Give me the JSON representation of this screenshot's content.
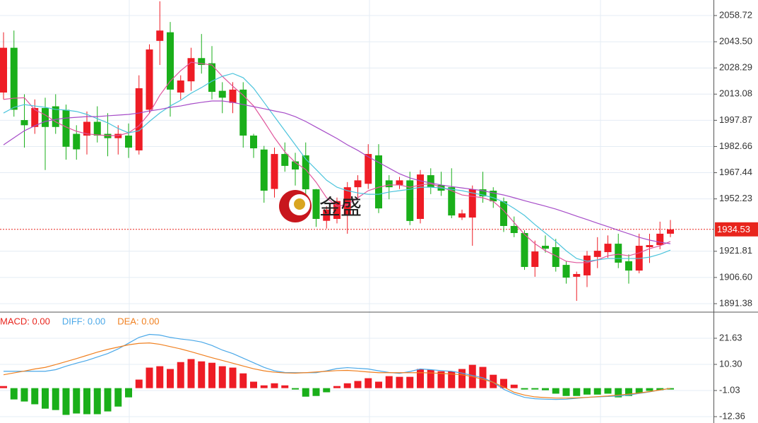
{
  "chart_data": [
    {
      "type": "candlestick",
      "open": [
        2014,
        2040,
        1998,
        1994,
        2005,
        2006,
        2004,
        1990,
        1989,
        1997,
        1990,
        1987.5,
        1989,
        1980.4,
        2004,
        2044,
        2049,
        2014,
        2020.5,
        2034,
        2031,
        2015,
        2008,
        2015.7,
        1989,
        1980.9,
        1958,
        1978.3,
        1974,
        1977.5,
        1957.8,
        1939.5,
        1940.6,
        1942.6,
        1959,
        1961,
        1977.5,
        1963,
        1960.3,
        1963,
        1940.6,
        1966,
        1960.3,
        1959,
        1941.4,
        1941.4,
        1957.8,
        1957,
        1950.8,
        1936.5,
        1932.4,
        1912.7,
        1925,
        1924.2,
        1913.9,
        1907,
        1907.8,
        1918.5,
        1921.3,
        1926.2,
        1916,
        1910.6,
        1924.2,
        1925.4,
        1932
      ],
      "high": [
        2049,
        2050,
        2013,
        2010,
        2011,
        2013,
        2007,
        1995,
        2003,
        2006,
        2002,
        1995,
        1996,
        2024,
        2042,
        2067,
        2055,
        2024,
        2040,
        2048,
        2041,
        2020,
        2020,
        2020,
        1990,
        1983,
        1982,
        1985,
        1979,
        1985,
        1958,
        1948,
        1953,
        1962,
        1966,
        1984,
        1984,
        1966,
        1965,
        1968,
        1969,
        1970,
        1968,
        1970,
        1946,
        1960,
        1968,
        1959,
        1953,
        1942,
        1934,
        1928,
        1931,
        1929,
        1916,
        1910,
        1922,
        1930,
        1931,
        1932,
        1920,
        1932,
        1932,
        1939,
        1940
      ],
      "low": [
        2010,
        2000,
        1982,
        1990,
        1969,
        1990,
        1975,
        1975,
        1978,
        1985,
        1977,
        1978,
        1976,
        1978,
        2002,
        2030,
        2000,
        2010,
        2015,
        2025,
        2010,
        2002,
        2002,
        1982,
        1976,
        1950,
        1953,
        1968,
        1960,
        1954,
        1936,
        1935,
        1938,
        1932,
        1952,
        1958,
        1944,
        1952,
        1958,
        1937,
        1938,
        1955,
        1954,
        1941,
        1940,
        1925,
        1950,
        1947,
        1933,
        1930,
        1911,
        1907,
        1921,
        1910,
        1903,
        1893,
        1901,
        1912,
        1918,
        1912,
        1903,
        1909,
        1915,
        1923,
        1930
      ],
      "close": [
        2040,
        2004,
        1995,
        2005,
        1994,
        1994,
        1982.5,
        1981,
        1997,
        1989,
        1987.5,
        1990,
        1982,
        2016.5,
        2039,
        2050,
        2015.7,
        2021,
        2034,
        2030,
        2014.4,
        2011,
        2015.7,
        1989,
        1981.6,
        1957,
        1978.3,
        1971.4,
        1969.3,
        1957.8,
        1940.6,
        1946,
        1951,
        1959,
        1963,
        1978.3,
        1946.7,
        1959,
        1963,
        1939.4,
        1966.4,
        1959,
        1957,
        1942.6,
        1943.8,
        1957.8,
        1953.7,
        1950.8,
        1936.5,
        1932.4,
        1912.7,
        1921.7,
        1923.3,
        1912.7,
        1906.5,
        1908.6,
        1919.3,
        1922.1,
        1926.2,
        1915.2,
        1910.6,
        1925,
        1925.4,
        1932,
        1934.5
      ],
      "up_color": "#ee1c25",
      "down_color": "#1aaf1a",
      "series": [
        {
          "color": "#e0559b",
          "values": [
            2010,
            2010.7,
            2011,
            2004,
            2001,
            1997,
            1994,
            1991.5,
            1990,
            1989.4,
            1989,
            1989,
            1990.6,
            1994.7,
            2002,
            2012.4,
            2020.6,
            2026.7,
            2031.6,
            2030.8,
            2030,
            2023.4,
            2017.7,
            2012.4,
            2006.2,
            1997.2,
            1987.8,
            1979.5,
            1973.4,
            1969.3,
            1961.9,
            1952.9,
            1948,
            1948.8,
            1952.9,
            1957,
            1959,
            1960.3,
            1960.3,
            1959,
            1960.3,
            1961.1,
            1959,
            1957,
            1954.5,
            1953.7,
            1952.9,
            1950.8,
            1945.5,
            1938.5,
            1931.6,
            1926.2,
            1922.1,
            1919.2,
            1916,
            1915.2,
            1915.2,
            1916.8,
            1919.2,
            1920.1,
            1919.2,
            1920.9,
            1923.3,
            1925,
            1927.5
          ]
        },
        {
          "color": "#4cc4dc",
          "values": [
            2002.1,
            2005.4,
            2007,
            2006.2,
            2005.4,
            2004.2,
            2003.8,
            2003,
            2001.3,
            1998.8,
            1996.4,
            1993.1,
            1990.6,
            1991.8,
            1997.2,
            2002.1,
            2006.2,
            2009.5,
            2013.6,
            2016.9,
            2020.6,
            2023.4,
            2025.1,
            2022.6,
            2016.5,
            2008.3,
            2000,
            1991.8,
            1983.6,
            1975.4,
            1969.3,
            1963.1,
            1959,
            1957,
            1955.7,
            1954.9,
            1954.9,
            1956.2,
            1957,
            1957.8,
            1959,
            1959,
            1958.6,
            1957.8,
            1957,
            1955.7,
            1954.5,
            1952.9,
            1950.4,
            1946.7,
            1942.6,
            1937.3,
            1932.4,
            1927.5,
            1922.1,
            1917.6,
            1916,
            1916.8,
            1917.6,
            1917.6,
            1917.6,
            1917.6,
            1918.4,
            1920.1,
            1922.5
          ]
        },
        {
          "color": "#a64cc8",
          "values": [
            1983.6,
            1987.7,
            1991.8,
            1994.7,
            1997.2,
            1998.4,
            1999.2,
            1999.6,
            2000,
            2000,
            2000.5,
            2000.9,
            2001.3,
            2002.1,
            2003.3,
            2004.2,
            2005.4,
            2006.2,
            2007.4,
            2008.3,
            2009.1,
            2009.1,
            2008.3,
            2007,
            2005.8,
            2004.6,
            2003.3,
            2002.1,
            2000,
            1997.2,
            1993.9,
            1990.6,
            1987.3,
            1983.6,
            1980.4,
            1976.7,
            1973.4,
            1970.1,
            1966.8,
            1964.4,
            1962.7,
            1961.5,
            1960.3,
            1959.4,
            1958.6,
            1957.8,
            1957,
            1955.7,
            1954.5,
            1952.9,
            1951.2,
            1949.6,
            1948,
            1946.3,
            1944.3,
            1942.2,
            1940.2,
            1938.1,
            1936.1,
            1934,
            1932,
            1929.9,
            1928.3,
            1927.1,
            1926.2
          ]
        }
      ],
      "ylim": [
        1886.87,
        2067.74
      ],
      "yticks": [
        2058.72,
        {
          "value": 2043.5,
          "label": "2043.50"
        },
        2028.29,
        2013.08,
        1997.87,
        1982.66,
        1967.44,
        1952.23,
        1921.81,
        {
          "value": 1906.6,
          "label": "1906.60"
        },
        1891.38
      ],
      "grid": true,
      "last_price": 1934.53,
      "last_price_color": "#e8251d",
      "watermark": "金盛"
    },
    {
      "type": "macd",
      "up_color": "#ee1c25",
      "down_color": "#1aaf1a",
      "series": [
        {
          "name": "MACD: 0.00",
          "color": "#e8251d",
          "kind": "bar",
          "values": [
            0.9,
            -4.9,
            -5.8,
            -7,
            -8.9,
            -9.5,
            -11.6,
            -11,
            -11.3,
            -11.3,
            -10.1,
            -8,
            -4,
            3.7,
            8.9,
            9.5,
            8.3,
            11.3,
            12.6,
            11.6,
            11,
            9.5,
            8.9,
            6.4,
            2.8,
            1.2,
            2.1,
            1.2,
            -0.6,
            -3.7,
            -3.4,
            -1.8,
            0.9,
            2.1,
            3.1,
            4.3,
            2.8,
            5.2,
            4.9,
            4.9,
            8.3,
            8,
            7.3,
            7.3,
            8.3,
            10.1,
            9.2,
            5.8,
            4,
            1.5,
            -0.6,
            -0.6,
            -0.9,
            -2.4,
            -3.4,
            -3.4,
            -2.8,
            -2.8,
            -2.4,
            -4,
            -3.4,
            -2.1,
            -1.2,
            -0.9,
            -0.6
          ]
        },
        {
          "name": "DIFF: 0.00",
          "color": "#4aa8e8",
          "kind": "line",
          "values": [
            7.3,
            7.3,
            7.3,
            7.3,
            7.3,
            8,
            9.5,
            10.8,
            12,
            13.5,
            15,
            17,
            19.5,
            22,
            23.3,
            23,
            22,
            21.3,
            20.8,
            20,
            18.5,
            16.5,
            15,
            13,
            11,
            9,
            7.5,
            6.8,
            6.7,
            6.7,
            6.7,
            7.5,
            8.5,
            8.9,
            8.6,
            8.3,
            7.5,
            6.8,
            6.4,
            7.2,
            8.3,
            8,
            7.6,
            7.3,
            6.5,
            5.5,
            4.5,
            2.5,
            -0.5,
            -2.5,
            -4,
            -4.6,
            -4.8,
            -4.9,
            -4.8,
            -4.4,
            -4,
            -3.8,
            -3.6,
            -3.4,
            -3,
            -2.3,
            -1.6,
            -0.8,
            -0.1
          ]
        },
        {
          "name": "DEA: 0.00",
          "color": "#f08020",
          "kind": "line",
          "values": [
            5.8,
            6.6,
            7.4,
            8.3,
            9,
            10.2,
            11.5,
            12.8,
            14.2,
            15.6,
            16.8,
            17.8,
            18.8,
            19.4,
            19.6,
            19,
            18,
            17,
            15.8,
            14.5,
            13.2,
            12,
            10.8,
            9.6,
            8.4,
            7.5,
            6.9,
            6.6,
            6.5,
            6.7,
            7,
            7.3,
            7.6,
            7.7,
            7.4,
            7,
            6.7,
            6.7,
            6.7,
            6.7,
            6.7,
            6.6,
            6.4,
            6.1,
            5.8,
            5,
            3.8,
            2.5,
            0.5,
            -1.8,
            -3,
            -3.8,
            -4.1,
            -4.3,
            -4.3,
            -4.2,
            -4,
            -3.7,
            -3.4,
            -3,
            -2.6,
            -2.1,
            -1.5,
            -0.8,
            -0.1
          ]
        }
      ],
      "ylim": [
        -15.12,
        32.65
      ],
      "yticks": [
        21.63,
        {
          "value": 10.3,
          "label": "10.30"
        },
        -1.03,
        -12.36
      ],
      "grid": true
    }
  ]
}
